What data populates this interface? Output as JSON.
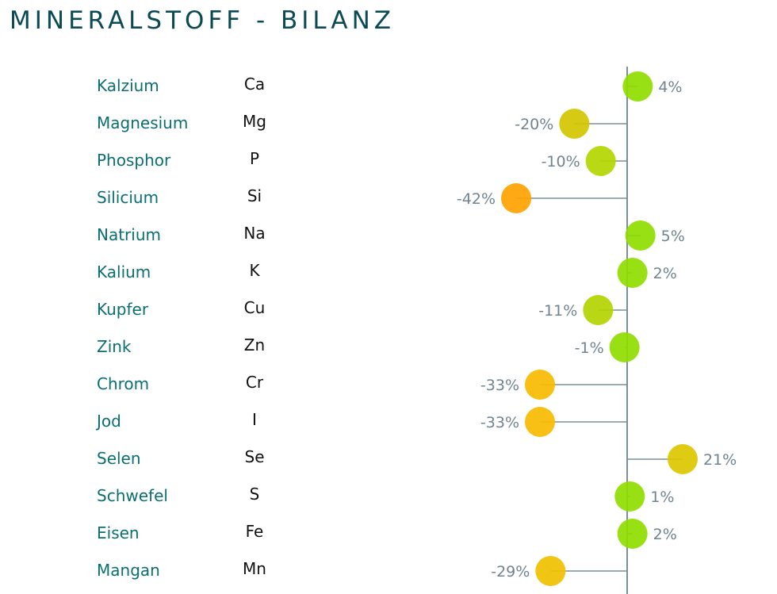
{
  "title": "MINERALSTOFF - BILANZ",
  "chart_data": {
    "type": "lollipop",
    "title": "MINERALSTOFF - BILANZ",
    "value_unit": "%",
    "categories": [
      "Kalzium",
      "Magnesium",
      "Phosphor",
      "Silicium",
      "Natrium",
      "Kalium",
      "Kupfer",
      "Zink",
      "Chrom",
      "Jod",
      "Selen",
      "Schwefel",
      "Eisen",
      "Mangan"
    ],
    "symbols": [
      "Ca",
      "Mg",
      "P",
      "Si",
      "Na",
      "K",
      "Cu",
      "Zn",
      "Cr",
      "I",
      "Se",
      "S",
      "Fe",
      "Mn"
    ],
    "values": [
      4,
      -20,
      -10,
      -42,
      5,
      2,
      -11,
      -1,
      -33,
      -33,
      21,
      1,
      2,
      -29
    ],
    "labels": [
      "4%",
      "-20%",
      "-10%",
      "-42%",
      "5%",
      "2%",
      "-11%",
      "-1%",
      "-33%",
      "-33%",
      "21%",
      "1%",
      "2%",
      "-29%"
    ],
    "colors": [
      "#8fdc00",
      "#d2c600",
      "#b3d600",
      "#ffa200",
      "#8fdc00",
      "#8fdc00",
      "#b3d400",
      "#8fdc00",
      "#f7bb00",
      "#f7bb00",
      "#dcc500",
      "#8fdc00",
      "#8fdc00",
      "#f0c000"
    ],
    "axis_color": "#7a8f99",
    "label_color": "#6f8490",
    "grid": false
  }
}
